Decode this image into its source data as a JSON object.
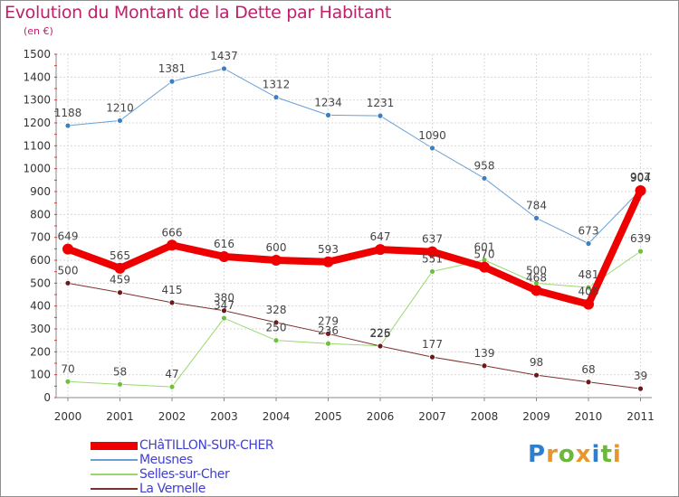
{
  "title": "Evolution du Montant de la Dette par Habitant",
  "unit_label": "(en €)",
  "logo": {
    "letters": [
      "P",
      "r",
      "o",
      "x",
      "i",
      "t",
      "i"
    ],
    "colors": [
      "#2f7fd1",
      "#e8962a",
      "#6bb83a",
      "#e8962a",
      "#2f7fd1",
      "#6bb83a",
      "#e8962a"
    ]
  },
  "chart_data": {
    "type": "line",
    "x": [
      "2000",
      "2001",
      "2002",
      "2003",
      "2004",
      "2005",
      "2006",
      "2007",
      "2008",
      "2009",
      "2010",
      "2011"
    ],
    "ylim": [
      0,
      1500
    ],
    "yticks": [
      "0",
      "100",
      "200",
      "300",
      "400",
      "500",
      "600",
      "700",
      "800",
      "900",
      "1000",
      "1100",
      "1200",
      "1300",
      "1400",
      "1500"
    ],
    "grid": true,
    "legend_position": "bottom-left",
    "series": [
      {
        "name": "CHâTILLON-SUR-CHER",
        "color": "#ee0000",
        "width": 8,
        "marker_radius": 6,
        "values": [
          649,
          565,
          666,
          616,
          600,
          593,
          647,
          637,
          570,
          468,
          408,
          904
        ],
        "labels": [
          "649",
          "565",
          "666",
          "616",
          "600",
          "593",
          "647",
          "637",
          "570",
          "468",
          "408",
          "904"
        ]
      },
      {
        "name": "Meusnes",
        "color": "#6a9fd3",
        "width": 1,
        "marker": "#3d7fc0",
        "marker_radius": 3,
        "values": [
          1188,
          1210,
          1381,
          1437,
          1312,
          1234,
          1231,
          1090,
          958,
          784,
          673,
          907
        ],
        "labels": [
          "1188",
          "1210",
          "1381",
          "1437",
          "1312",
          "1234",
          "1231",
          "1090",
          "958",
          "784",
          "673",
          "907"
        ]
      },
      {
        "name": "Selles-sur-Cher",
        "color": "#9ad86e",
        "width": 1,
        "marker": "#70c040",
        "marker_radius": 3,
        "values": [
          70,
          58,
          47,
          347,
          250,
          236,
          226,
          551,
          601,
          500,
          481,
          639
        ],
        "labels": [
          "70",
          "58",
          "47",
          "347",
          "250",
          "236",
          "226",
          "551",
          "601",
          "500",
          "481",
          "639"
        ]
      },
      {
        "name": "La Vernelle",
        "color": "#7a3030",
        "width": 1,
        "marker": "#6a1a1a",
        "marker_radius": 3,
        "values": [
          500,
          459,
          415,
          380,
          328,
          279,
          225,
          177,
          139,
          98,
          68,
          39
        ],
        "labels": [
          "500",
          "459",
          "415",
          "380",
          "328",
          "279",
          "225",
          "177",
          "139",
          "98",
          "68",
          "39"
        ]
      }
    ]
  }
}
